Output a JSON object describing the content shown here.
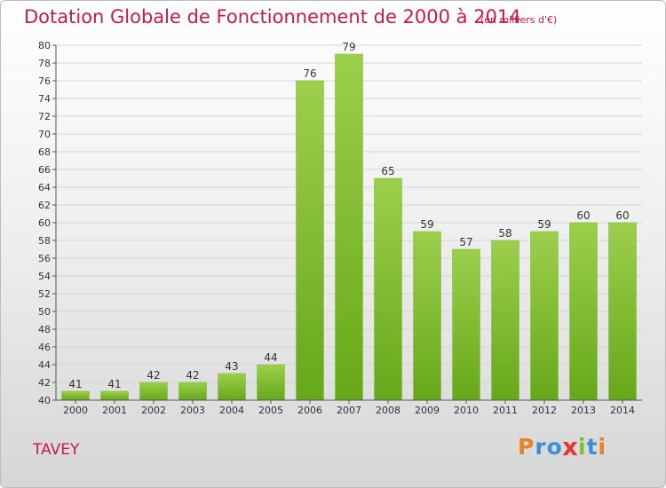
{
  "chart_data": {
    "type": "bar",
    "title": "Dotation Globale de Fonctionnement de 2000 à 2014",
    "subtitle": "(en milliers d'€)",
    "categories": [
      "2000",
      "2001",
      "2002",
      "2003",
      "2004",
      "2005",
      "2006",
      "2007",
      "2008",
      "2009",
      "2010",
      "2011",
      "2012",
      "2013",
      "2014"
    ],
    "values": [
      41,
      41,
      42,
      42,
      43,
      44,
      76,
      79,
      65,
      59,
      57,
      58,
      59,
      60,
      60
    ],
    "ylim": [
      40,
      80
    ],
    "ytick_step": 2,
    "grid": true,
    "bar_color": "#8cc63f"
  },
  "footer": {
    "commune": "TAVEY",
    "logo_letters": [
      {
        "ch": "P",
        "color": "#e8822a"
      },
      {
        "ch": "r",
        "color": "#3a8fd8"
      },
      {
        "ch": "o",
        "color": "#3a8fd8"
      },
      {
        "ch": "x",
        "color": "#e23b2e"
      },
      {
        "ch": "i",
        "color": "#7bbf2a"
      },
      {
        "ch": "t",
        "color": "#3a8fd8"
      },
      {
        "ch": "i",
        "color": "#e8822a"
      }
    ]
  }
}
